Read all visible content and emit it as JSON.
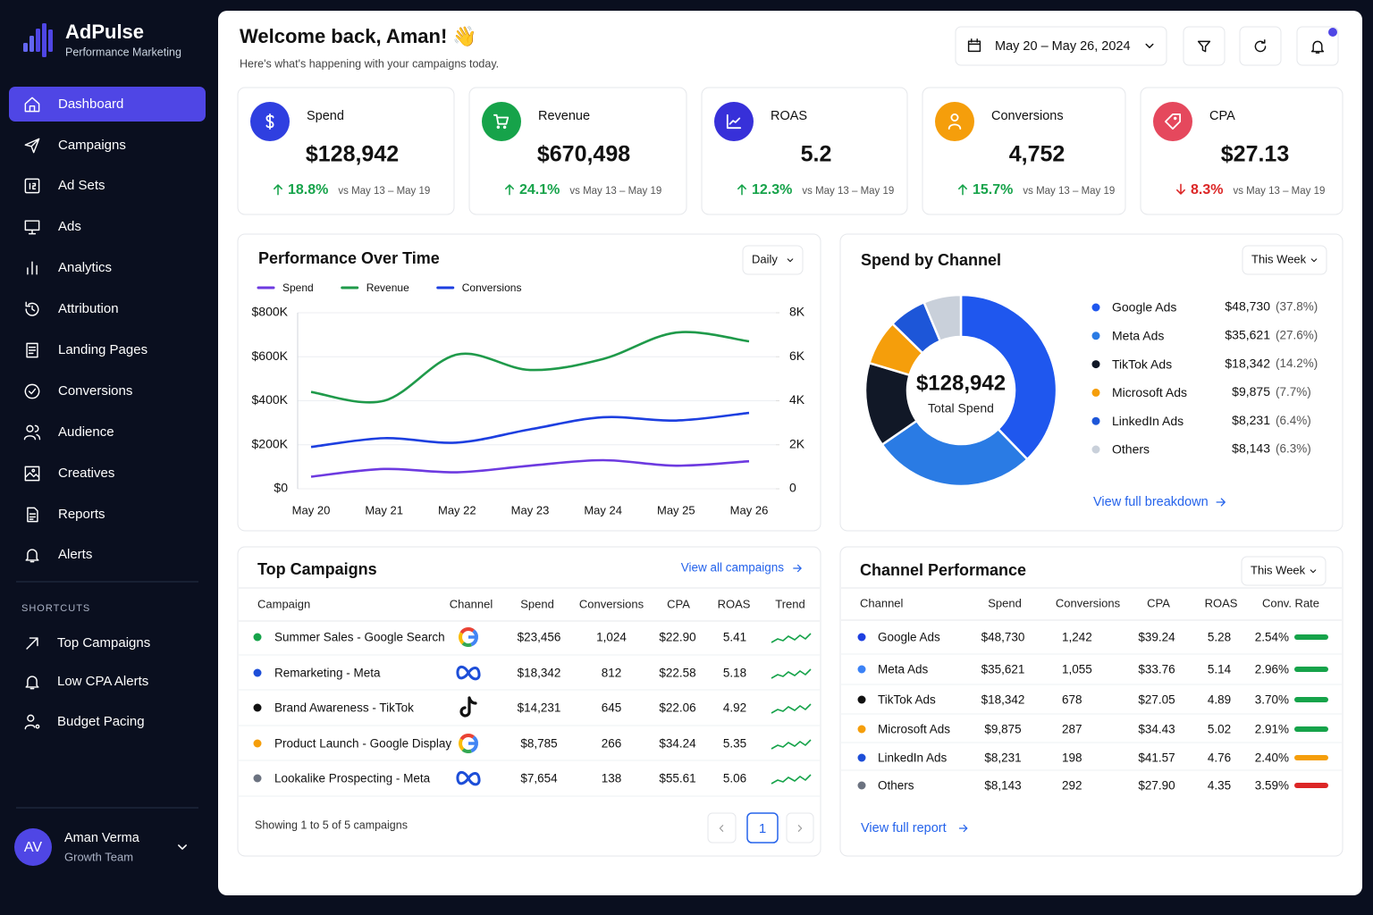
{
  "sidebar": {
    "brand": "AdPulse",
    "tagline": "Performance Marketing",
    "nav": [
      "Dashboard",
      "Campaigns",
      "Ad Sets",
      "Ads",
      "Analytics",
      "Attribution",
      "Landing Pages",
      "Conversions",
      "Audience",
      "Creatives",
      "Reports",
      "Alerts"
    ],
    "shortcuts_title": "SHORTCUTS",
    "shortcuts": [
      "Top Campaigns",
      "Low CPA Alerts",
      "Budget Pacing"
    ],
    "user": {
      "initials": "AV",
      "name": "Aman Verma",
      "team": "Growth Team"
    }
  },
  "header": {
    "title": "Welcome back, Aman! 👋",
    "subtitle": "Here's what's happening with your campaigns today.",
    "date_range": "May 20 – May 26, 2024"
  },
  "kpis": [
    {
      "label": "Spend",
      "value": "$128,942",
      "change": "18.8%",
      "direction": "up",
      "compare": "vs May 13 – May 19",
      "color": "#2f3fe0"
    },
    {
      "label": "Revenue",
      "value": "$670,498",
      "change": "24.1%",
      "direction": "up",
      "compare": "vs May 13 – May 19",
      "color": "#16a34a"
    },
    {
      "label": "ROAS",
      "value": "5.2",
      "change": "12.3%",
      "direction": "up",
      "compare": "vs May 13 – May 19",
      "color": "#3730d9"
    },
    {
      "label": "Conversions",
      "value": "4,752",
      "change": "15.7%",
      "direction": "up",
      "compare": "vs May 13 – May 19",
      "color": "#f59e0b"
    },
    {
      "label": "CPA",
      "value": "$27.13",
      "change": "8.3%",
      "direction": "down",
      "compare": "vs May 13 – May 19",
      "color": "#e5485d"
    }
  ],
  "chart_data": [
    {
      "type": "line",
      "title": "Performance Over Time",
      "period": "Daily",
      "categories": [
        "May 20",
        "May 21",
        "May 22",
        "May 23",
        "May 24",
        "May 25",
        "May 26"
      ],
      "series": [
        {
          "name": "Spend",
          "color": "#6d3ae0",
          "values": [
            55000,
            90000,
            75000,
            105000,
            130000,
            105000,
            125000
          ]
        },
        {
          "name": "Revenue",
          "color": "#1f9a4a",
          "values": [
            440000,
            400000,
            610000,
            540000,
            590000,
            710000,
            670000
          ]
        },
        {
          "name": "Conversions",
          "color": "#1d3fe0",
          "axis": "y2",
          "values": [
            1900,
            2300,
            2100,
            2700,
            3250,
            3100,
            3450
          ]
        }
      ],
      "ylim": [
        0,
        800000
      ],
      "yticks": [
        {
          "value": 0,
          "label": "$0"
        },
        {
          "value": 200000,
          "label": "$200K"
        },
        {
          "value": 400000,
          "label": "$400K"
        },
        {
          "value": 600000,
          "label": "$600K"
        },
        {
          "value": 800000,
          "label": "$800K"
        }
      ],
      "y2lim": [
        0,
        8000
      ],
      "y2ticks": [
        0,
        {
          "value": 2000,
          "label": "2K"
        },
        {
          "value": 4000,
          "label": "4K"
        },
        {
          "value": 6000,
          "label": "6K"
        },
        {
          "value": 8000,
          "label": "8K"
        }
      ],
      "grid": true
    },
    {
      "type": "pie",
      "title": "Spend by Channel",
      "period": "This Week",
      "center_value": "$128,942",
      "center_label": "Total Spend",
      "link": "View full breakdown",
      "categories": [
        "Google Ads",
        "Meta Ads",
        "TikTok Ads",
        "Microsoft Ads",
        "LinkedIn Ads",
        "Others"
      ],
      "values": [
        48730,
        35621,
        18342,
        9875,
        8231,
        8143
      ],
      "value_labels": [
        "$48,730",
        "$35,621",
        "$18,342",
        "$9,875",
        "$8,231",
        "$8,143"
      ],
      "percent_labels": [
        "(37.8%)",
        "(27.6%)",
        "(14.2%)",
        "(7.7%)",
        "(6.4%)",
        "(6.3%)"
      ],
      "colors": [
        "#1f57ee",
        "#2a7be4",
        "#111827",
        "#f59e0b",
        "#1d56d8",
        "#c9d0da"
      ]
    }
  ],
  "top_campaigns": {
    "title": "Top Campaigns",
    "link": "View all campaigns",
    "columns": [
      "Campaign",
      "Channel",
      "Spend",
      "Conversions",
      "CPA",
      "ROAS",
      "Trend"
    ],
    "rows": [
      {
        "name": "Summer Sales - Google Search",
        "dot": "#16a34a",
        "spend": "$23,456",
        "conversions": "1,024",
        "cpa": "$22.90",
        "roas": "5.41"
      },
      {
        "name": "Remarketing - Meta",
        "dot": "#1d4ed8",
        "spend": "$18,342",
        "conversions": "812",
        "cpa": "$22.58",
        "roas": "5.18"
      },
      {
        "name": "Brand Awareness - TikTok",
        "dot": "#111111",
        "spend": "$14,231",
        "conversions": "645",
        "cpa": "$22.06",
        "roas": "4.92"
      },
      {
        "name": "Product Launch - Google Display",
        "dot": "#f59e0b",
        "spend": "$8,785",
        "conversions": "266",
        "cpa": "$34.24",
        "roas": "5.35"
      },
      {
        "name": "Lookalike Prospecting - Meta",
        "dot": "#6b7280",
        "spend": "$7,654",
        "conversions": "138",
        "cpa": "$55.61",
        "roas": "5.06"
      }
    ],
    "footer": "Showing 1 to 5 of 5 campaigns",
    "page": "1"
  },
  "channel_performance": {
    "title": "Channel Performance",
    "period": "This Week",
    "link": "View full report",
    "columns": [
      "Channel",
      "Spend",
      "Conversions",
      "CPA",
      "ROAS",
      "Conv. Rate"
    ],
    "rows": [
      {
        "name": "Google Ads",
        "dot": "#1d3fe0",
        "spend": "$48,730",
        "conversions": "1,242",
        "cpa": "$39.24",
        "roas": "5.28",
        "rate": "2.54%",
        "rate_color": "#16a34a"
      },
      {
        "name": "Meta Ads",
        "dot": "#3b82f6",
        "spend": "$35,621",
        "conversions": "1,055",
        "cpa": "$33.76",
        "roas": "5.14",
        "rate": "2.96%",
        "rate_color": "#16a34a"
      },
      {
        "name": "TikTok Ads",
        "dot": "#111111",
        "spend": "$18,342",
        "conversions": "678",
        "cpa": "$27.05",
        "roas": "4.89",
        "rate": "3.70%",
        "rate_color": "#16a34a"
      },
      {
        "name": "Microsoft Ads",
        "dot": "#f59e0b",
        "spend": "$9,875",
        "conversions": "287",
        "cpa": "$34.43",
        "roas": "5.02",
        "rate": "2.91%",
        "rate_color": "#16a34a"
      },
      {
        "name": "LinkedIn Ads",
        "dot": "#1d4ed8",
        "spend": "$8,231",
        "conversions": "198",
        "cpa": "$41.57",
        "roas": "4.76",
        "rate": "2.40%",
        "rate_color": "#f59e0b"
      },
      {
        "name": "Others",
        "dot": "#6b7280",
        "spend": "$8,143",
        "conversions": "292",
        "cpa": "$27.90",
        "roas": "4.35",
        "rate": "3.59%",
        "rate_color": "#dc2626"
      }
    ]
  }
}
